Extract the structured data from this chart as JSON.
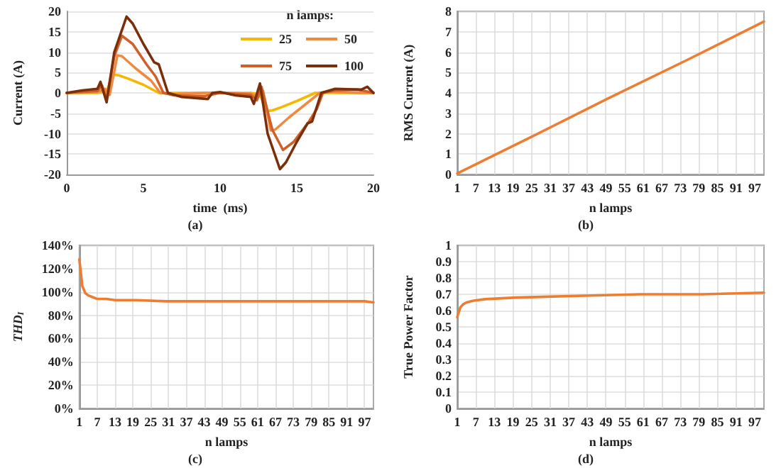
{
  "chart_data": [
    {
      "type": "line",
      "xlabel": "time  (ms)",
      "ylabel": "Current (A)",
      "annotations": [
        "(a)"
      ],
      "legend_title": "n lamps:",
      "legend": "top right",
      "grid": "y",
      "xlim": [
        0,
        20
      ],
      "xticks": [
        0,
        5,
        10,
        15,
        20
      ],
      "ylim": [
        -20,
        20
      ],
      "yticks": [
        -20,
        -15,
        -10,
        -5,
        0,
        5,
        10,
        15,
        20
      ],
      "series": [
        {
          "name": "25",
          "color": "#f5b800",
          "x": [
            0,
            2,
            2.6,
            3.0,
            3.4,
            4,
            5,
            6.0,
            7,
            9,
            10,
            12,
            12.6,
            13.0,
            13.4,
            14,
            15,
            16.2,
            17,
            19,
            20
          ],
          "values": [
            0,
            0,
            0.3,
            4.5,
            4.3,
            3.5,
            2,
            0,
            0,
            0,
            0,
            0,
            -0.3,
            -4.5,
            -4.3,
            -3.5,
            -2,
            0,
            0,
            0,
            0
          ]
        },
        {
          "name": "50",
          "color": "#f08a40",
          "x": [
            0,
            2,
            2.5,
            2.8,
            3.3,
            3.6,
            4.5,
            5.5,
            6.1,
            7,
            9,
            10,
            12,
            12.5,
            12.8,
            13.3,
            13.6,
            14.5,
            15.5,
            16.5,
            17,
            19,
            20
          ],
          "values": [
            0,
            0.2,
            1.0,
            -0.5,
            9.2,
            9,
            6,
            3,
            0,
            -0.3,
            0,
            0,
            -0.2,
            -1.0,
            0.5,
            -9.2,
            -9,
            -6,
            -3,
            0,
            0.3,
            0,
            0
          ]
        },
        {
          "name": "75",
          "color": "#d0602a",
          "x": [
            0,
            2,
            2.3,
            2.6,
            3.1,
            3.6,
            4.3,
            5.2,
            5.8,
            6.3,
            7,
            9,
            10,
            12,
            12.4,
            12.7,
            13.4,
            14.1,
            14.8,
            15.8,
            16.3,
            16.7,
            17.5,
            19,
            20
          ],
          "values": [
            0,
            0.5,
            1.8,
            -1.5,
            9,
            14,
            12,
            7,
            4,
            0,
            -0.6,
            -0.8,
            0,
            -0.5,
            -1.8,
            1.5,
            -9,
            -14,
            -12,
            -7,
            -4,
            0,
            0.6,
            0.8,
            0
          ]
        },
        {
          "name": "100",
          "color": "#7a2e0a",
          "x": [
            0,
            1,
            2,
            2.2,
            2.6,
            3.1,
            3.9,
            4.3,
            5,
            5.7,
            6.0,
            6.6,
            7.5,
            9.2,
            9.5,
            10,
            11,
            12,
            12.2,
            12.6,
            13.1,
            13.9,
            14.3,
            15,
            15.7,
            16.0,
            16.6,
            17.5,
            19.2,
            19.6,
            20
          ],
          "values": [
            0,
            0.6,
            1,
            2.7,
            -2.3,
            10,
            18.7,
            17,
            12,
            7.5,
            7,
            0,
            -1,
            -1.5,
            0,
            0.2,
            -0.6,
            -1,
            -2.7,
            2.3,
            -10,
            -18.7,
            -17,
            -12,
            -7.5,
            -7,
            0,
            1,
            0.8,
            1.5,
            0
          ]
        }
      ]
    },
    {
      "type": "line",
      "xlabel": "n lamps",
      "ylabel": "RMS Current (A)",
      "annotations": [
        "(b)"
      ],
      "grid": true,
      "xlim": [
        1,
        100
      ],
      "xticks": [
        1,
        7,
        13,
        19,
        25,
        31,
        37,
        43,
        49,
        55,
        61,
        67,
        73,
        79,
        85,
        91,
        97
      ],
      "ylim": [
        0,
        8
      ],
      "yticks": [
        0,
        1,
        2,
        3,
        4,
        5,
        6,
        7,
        8
      ],
      "series": [
        {
          "color": "#ed7d31",
          "x": [
            1,
            25,
            50,
            75,
            100
          ],
          "values": [
            0.05,
            1.85,
            3.75,
            5.6,
            7.5
          ]
        }
      ]
    },
    {
      "type": "line",
      "xlabel": "n lamps",
      "ylabel": "THD$_{I}$",
      "annotations": [
        "(c)"
      ],
      "grid": true,
      "xlim": [
        1,
        100
      ],
      "xticks": [
        1,
        7,
        13,
        19,
        25,
        31,
        37,
        43,
        49,
        55,
        61,
        67,
        73,
        79,
        85,
        91,
        97
      ],
      "ylim": [
        0,
        140
      ],
      "yticks": [
        {
          "value": 0,
          "label": "0%"
        },
        {
          "value": 20,
          "label": "20%"
        },
        {
          "value": 40,
          "label": "40%"
        },
        {
          "value": 60,
          "label": "60%"
        },
        {
          "value": 80,
          "label": "80%"
        },
        {
          "value": 100,
          "label": "100%"
        },
        {
          "value": 120,
          "label": "120%"
        },
        {
          "value": 140,
          "label": "140%"
        }
      ],
      "series": [
        {
          "color": "#ed7d31",
          "x": [
            1,
            2,
            3,
            4,
            5,
            7,
            10,
            13,
            20,
            30,
            60,
            90,
            97,
            100
          ],
          "values": [
            128,
            105,
            99,
            97,
            96,
            94,
            94,
            93,
            93,
            92,
            92,
            92,
            92,
            91
          ]
        }
      ]
    },
    {
      "type": "line",
      "xlabel": "n lamps",
      "ylabel": "True Power Factor",
      "annotations": [
        "(d)"
      ],
      "grid": true,
      "xlim": [
        1,
        100
      ],
      "xticks": [
        1,
        7,
        13,
        19,
        25,
        31,
        37,
        43,
        49,
        55,
        61,
        67,
        73,
        79,
        85,
        91,
        97
      ],
      "ylim": [
        0,
        1
      ],
      "yticks": [
        0,
        0.1,
        0.2,
        0.3,
        0.4,
        0.5,
        0.6,
        0.7,
        0.8,
        0.9,
        1
      ],
      "series": [
        {
          "color": "#ed7d31",
          "x": [
            1,
            2,
            3,
            4,
            6,
            10,
            20,
            40,
            60,
            80,
            100
          ],
          "values": [
            0.56,
            0.62,
            0.64,
            0.65,
            0.66,
            0.67,
            0.68,
            0.69,
            0.7,
            0.7,
            0.71
          ]
        }
      ]
    }
  ]
}
